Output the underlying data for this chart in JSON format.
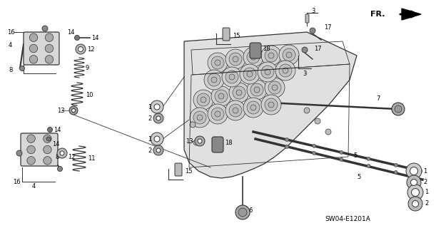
{
  "bg_color": "#ffffff",
  "fig_width": 6.18,
  "fig_height": 3.2,
  "dpi": 100,
  "diagram_code": "SW04-E1201A",
  "line_color": "#333333",
  "text_color": "#000000",
  "part_color": "#888888",
  "part_edge": "#333333"
}
